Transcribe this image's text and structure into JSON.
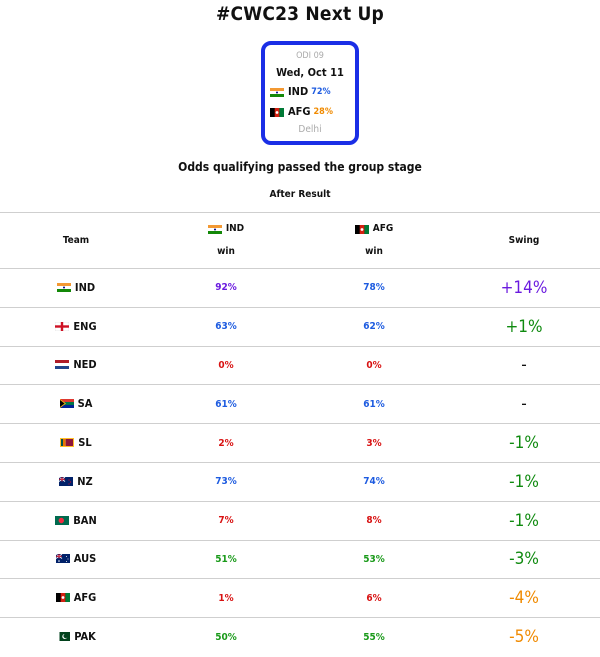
{
  "title": "#CWC23 Next Up",
  "match_card": {
    "odi": "ODI 09",
    "date": "Wed, Oct 11",
    "team1": {
      "name": "IND",
      "pct": "72%"
    },
    "team2": {
      "name": "AFG",
      "pct": "28%"
    },
    "venue": "Delhi"
  },
  "subtitle": "Odds qualifying passed the group stage",
  "after_result": "After Result",
  "headers": {
    "team": "Team",
    "ind": "IND",
    "ind_sub": "win",
    "afg": "AFG",
    "afg_sub": "win",
    "swing": "Swing"
  },
  "colors": {
    "purple": "#6a1adf",
    "blue": "#1d5be0",
    "red": "#d81212",
    "green": "#1a9a1a",
    "orange": "#f08a00",
    "card_border": "#1a2ee6"
  },
  "rows": [
    {
      "team": "IND",
      "flag": "india-flag",
      "ind_win": "92%",
      "afg_win": "78%",
      "swing": "+14%"
    },
    {
      "team": "ENG",
      "flag": "england-flag",
      "ind_win": "63%",
      "afg_win": "62%",
      "swing": "+1%"
    },
    {
      "team": "NED",
      "flag": "netherlands-flag",
      "ind_win": "0%",
      "afg_win": "0%",
      "swing": "-"
    },
    {
      "team": "SA",
      "flag": "south-africa-flag",
      "ind_win": "61%",
      "afg_win": "61%",
      "swing": "-"
    },
    {
      "team": "SL",
      "flag": "sri-lanka-flag",
      "ind_win": "2%",
      "afg_win": "3%",
      "swing": "-1%"
    },
    {
      "team": "NZ",
      "flag": "new-zealand-flag",
      "ind_win": "73%",
      "afg_win": "74%",
      "swing": "-1%"
    },
    {
      "team": "BAN",
      "flag": "bangladesh-flag",
      "ind_win": "7%",
      "afg_win": "8%",
      "swing": "-1%"
    },
    {
      "team": "AUS",
      "flag": "australia-flag",
      "ind_win": "51%",
      "afg_win": "53%",
      "swing": "-3%"
    },
    {
      "team": "AFG",
      "flag": "afghanistan-flag",
      "ind_win": "1%",
      "afg_win": "6%",
      "swing": "-4%"
    },
    {
      "team": "PAK",
      "flag": "pakistan-flag",
      "ind_win": "50%",
      "afg_win": "55%",
      "swing": "-5%"
    }
  ]
}
